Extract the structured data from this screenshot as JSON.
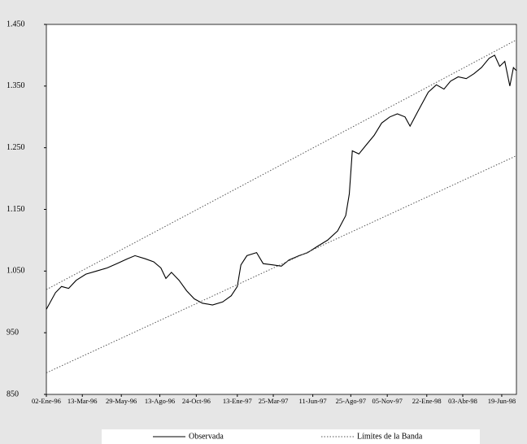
{
  "chart_data": {
    "type": "line",
    "x": [
      "1996-01-02",
      "1996-01-20",
      "1996-02-01",
      "1996-02-15",
      "1996-03-01",
      "1996-03-20",
      "1996-04-10",
      "1996-05-01",
      "1996-05-20",
      "1996-06-10",
      "1996-06-25",
      "1996-07-15",
      "1996-08-01",
      "1996-08-15",
      "1996-08-25",
      "1996-09-05",
      "1996-09-20",
      "1996-10-05",
      "1996-10-20",
      "1996-11-05",
      "1996-11-25",
      "1996-12-15",
      "1997-01-01",
      "1997-01-13",
      "1997-01-20",
      "1997-02-01",
      "1997-02-20",
      "1997-03-05",
      "1997-03-25",
      "1997-04-10",
      "1997-04-25",
      "1997-05-15",
      "1997-06-01",
      "1997-06-20",
      "1997-07-10",
      "1997-07-30",
      "1997-08-15",
      "1997-08-22",
      "1997-08-28",
      "1997-09-10",
      "1997-09-25",
      "1997-10-10",
      "1997-10-25",
      "1997-11-10",
      "1997-11-25",
      "1997-12-10",
      "1997-12-20",
      "1998-01-05",
      "1998-01-25",
      "1998-02-10",
      "1998-02-25",
      "1998-03-10",
      "1998-03-25",
      "1998-04-10",
      "1998-04-25",
      "1998-05-10",
      "1998-05-25",
      "1998-06-05",
      "1998-06-15",
      "1998-06-25",
      "1998-07-05",
      "1998-07-12",
      "1998-07-18"
    ],
    "series": [
      {
        "name": "Observada",
        "color": "#000000",
        "values": [
          988,
          1015,
          1025,
          1022,
          1035,
          1045,
          1050,
          1055,
          1062,
          1070,
          1075,
          1070,
          1065,
          1055,
          1038,
          1048,
          1035,
          1018,
          1005,
          998,
          995,
          1000,
          1010,
          1025,
          1060,
          1075,
          1080,
          1062,
          1060,
          1058,
          1068,
          1075,
          1080,
          1090,
          1100,
          1115,
          1140,
          1175,
          1245,
          1240,
          1255,
          1270,
          1290,
          1300,
          1305,
          1300,
          1285,
          1310,
          1340,
          1352,
          1345,
          1358,
          1365,
          1362,
          1370,
          1380,
          1395,
          1400,
          1382,
          1390,
          1350,
          1380,
          1375
        ]
      },
      {
        "name": "Límites de la Banda",
        "color": "#555555",
        "dashed": true,
        "x": [
          "1996-01-02",
          "1998-07-18"
        ],
        "low": [
          885,
          1237
        ],
        "high": [
          1020,
          1425
        ]
      }
    ],
    "xlim": [
      "1996-01-02",
      "1998-07-18"
    ],
    "xticks": [
      {
        "value": "1996-01-02",
        "label": "02-Ene-96"
      },
      {
        "value": "1996-03-13",
        "label": "13-Mar-96"
      },
      {
        "value": "1996-05-29",
        "label": "29-May-96"
      },
      {
        "value": "1996-08-13",
        "label": "13-Ago-96"
      },
      {
        "value": "1996-10-24",
        "label": "24-Oct-96"
      },
      {
        "value": "1997-01-13",
        "label": "13-Ene-97"
      },
      {
        "value": "1997-03-25",
        "label": "25-Mar-97"
      },
      {
        "value": "1997-06-11",
        "label": "11-Jun-97"
      },
      {
        "value": "1997-08-25",
        "label": "25-Ago-97"
      },
      {
        "value": "1997-11-05",
        "label": "05-Nov-97"
      },
      {
        "value": "1998-01-22",
        "label": "22-Ene-98"
      },
      {
        "value": "1998-04-03",
        "label": "03-Abr-98"
      },
      {
        "value": "1998-06-19",
        "label": "19-Jun-98"
      }
    ],
    "ylim": [
      850,
      1450
    ],
    "yticks": [
      850,
      950,
      {
        "value": 1050,
        "label": "1.050"
      },
      {
        "value": 1150,
        "label": "1.150"
      },
      {
        "value": 1250,
        "label": "1.250"
      },
      {
        "value": 1350,
        "label": "1.350"
      },
      {
        "value": 1450,
        "label": "1.450"
      }
    ],
    "grid": false
  }
}
